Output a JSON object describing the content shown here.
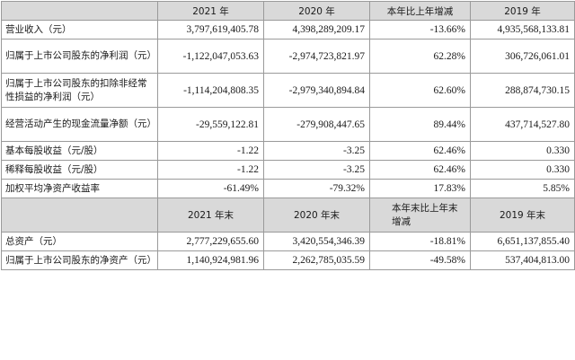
{
  "header1": [
    "",
    "2021 年",
    "2020 年",
    "本年比上年增减",
    "2019 年"
  ],
  "rows1": [
    {
      "label": "营业收入（元）",
      "v2021": "3,797,619,405.78",
      "v2020": "4,398,289,209.17",
      "change": "-13.66%",
      "v2019": "4,935,568,133.81"
    },
    {
      "label": "归属于上市公司股东的净利润（元）",
      "v2021": "-1,122,047,053.63",
      "v2020": "-2,974,723,821.97",
      "change": "62.28%",
      "v2019": "306,726,061.01"
    },
    {
      "label": "归属于上市公司股东的扣除非经常性损益的净利润（元）",
      "v2021": "-1,114,204,808.35",
      "v2020": "-2,979,340,894.84",
      "change": "62.60%",
      "v2019": "288,874,730.15"
    },
    {
      "label": "经营活动产生的现金流量净额（元）",
      "v2021": "-29,559,122.81",
      "v2020": "-279,908,447.65",
      "change": "89.44%",
      "v2019": "437,714,527.80"
    },
    {
      "label": "基本每股收益（元/股）",
      "v2021": "-1.22",
      "v2020": "-3.25",
      "change": "62.46%",
      "v2019": "0.330"
    },
    {
      "label": "稀释每股收益（元/股）",
      "v2021": "-1.22",
      "v2020": "-3.25",
      "change": "62.46%",
      "v2019": "0.330"
    },
    {
      "label": "加权平均净资产收益率",
      "v2021": "-61.49%",
      "v2020": "-79.32%",
      "change": "17.83%",
      "v2019": "5.85%"
    }
  ],
  "header2": [
    "",
    "2021 年末",
    "2020 年末",
    "本年末比上年末增减",
    "2019 年末"
  ],
  "rows2": [
    {
      "label": "总资产（元）",
      "v2021": "2,777,229,655.60",
      "v2020": "3,420,554,346.39",
      "change": "-18.81%",
      "v2019": "6,651,137,855.40"
    },
    {
      "label": "归属于上市公司股东的净资产（元）",
      "v2021": "1,140,924,981.96",
      "v2020": "2,262,785,035.59",
      "change": "-49.58%",
      "v2019": "537,404,813.00"
    }
  ]
}
